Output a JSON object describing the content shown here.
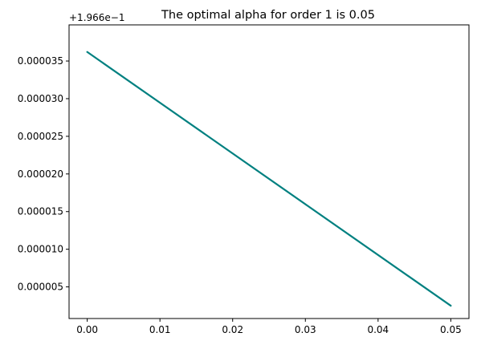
{
  "chart_data": {
    "type": "line",
    "title": "The optimal alpha for order 1 is 0.05",
    "xlabel": "",
    "ylabel": "",
    "y_offset_label": "+1.966e−1",
    "xlim": [
      -0.0025,
      0.0525
    ],
    "ylim": [
      8e-07,
      3.98e-05
    ],
    "x_ticks": [
      0.0,
      0.01,
      0.02,
      0.03,
      0.04,
      0.05
    ],
    "x_tick_labels": [
      "0.00",
      "0.01",
      "0.02",
      "0.03",
      "0.04",
      "0.05"
    ],
    "y_ticks": [
      5e-06,
      1e-05,
      1.5e-05,
      2e-05,
      2.5e-05,
      3e-05,
      3.5e-05
    ],
    "y_tick_labels": [
      "0.000005",
      "0.000010",
      "0.000015",
      "0.000020",
      "0.000025",
      "0.000030",
      "0.000035"
    ],
    "grid": false,
    "legend": "none",
    "series": [
      {
        "color": "#008080",
        "x": [
          0.0,
          0.05
        ],
        "y": [
          3.62e-05,
          2.5e-06
        ]
      }
    ]
  }
}
